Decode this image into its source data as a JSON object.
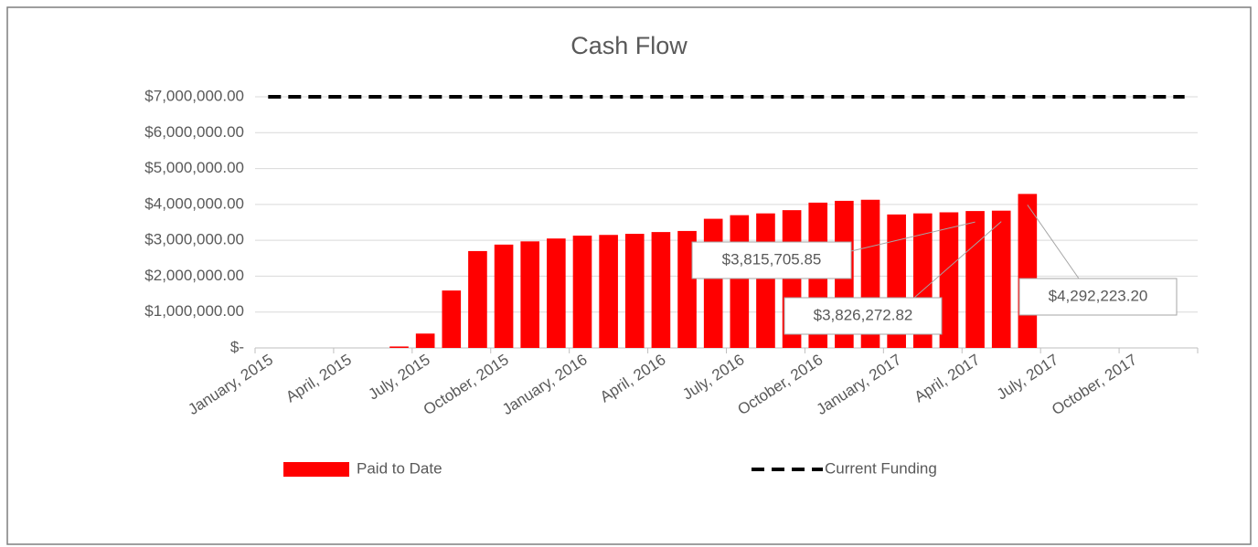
{
  "chart_data": {
    "type": "bar",
    "title": "Cash Flow",
    "categories": [
      "January, 2015",
      null,
      null,
      "April, 2015",
      null,
      null,
      "July, 2015",
      null,
      null,
      "October, 2015",
      null,
      null,
      "January, 2016",
      null,
      null,
      "April, 2016",
      null,
      null,
      "July, 2016",
      null,
      null,
      "October, 2016",
      null,
      null,
      "January, 2017",
      null,
      null,
      "April, 2017",
      null,
      null,
      "July, 2017",
      null,
      null,
      "October, 2017",
      null,
      null
    ],
    "series": [
      {
        "name": "Paid to Date",
        "type": "bar",
        "color": "#ff0000",
        "values": [
          0,
          0,
          0,
          0,
          0,
          40000,
          400000,
          1600000,
          2700000,
          2880000,
          2970000,
          3050000,
          3130000,
          3150000,
          3180000,
          3230000,
          3260000,
          3600000,
          3700000,
          3750000,
          3840000,
          4050000,
          4100000,
          4130000,
          3720000,
          3750000,
          3780000,
          3815705.85,
          3826272.82,
          4292223.2,
          null,
          null,
          null,
          null,
          null,
          null
        ],
        "value_labels": [
          null,
          null,
          null,
          null,
          null,
          null,
          null,
          null,
          null,
          null,
          null,
          null,
          null,
          null,
          null,
          null,
          null,
          null,
          null,
          null,
          null,
          null,
          null,
          null,
          null,
          null,
          null,
          "$3,815,705.85",
          "$3,826,272.82",
          "$4,292,223.20",
          null,
          null,
          null,
          null,
          null,
          null
        ]
      },
      {
        "name": "Current Funding",
        "type": "line",
        "color": "#000000",
        "dashed": true,
        "values": [
          7000000,
          7000000,
          7000000,
          7000000,
          7000000,
          7000000,
          7000000,
          7000000,
          7000000,
          7000000,
          7000000,
          7000000,
          7000000,
          7000000,
          7000000,
          7000000,
          7000000,
          7000000,
          7000000,
          7000000,
          7000000,
          7000000,
          7000000,
          7000000,
          7000000,
          7000000,
          7000000,
          7000000,
          7000000,
          7000000,
          7000000,
          7000000,
          7000000,
          7000000,
          7000000,
          7000000
        ]
      }
    ],
    "ylim": [
      0,
      7000000
    ],
    "yticks": [
      {
        "value": 0,
        "label": "$-"
      },
      {
        "value": 1000000,
        "label": "$1,000,000.00"
      },
      {
        "value": 2000000,
        "label": "$2,000,000.00"
      },
      {
        "value": 3000000,
        "label": "$3,000,000.00"
      },
      {
        "value": 4000000,
        "label": "$4,000,000.00"
      },
      {
        "value": 5000000,
        "label": "$5,000,000.00"
      },
      {
        "value": 6000000,
        "label": "$6,000,000.00"
      },
      {
        "value": 7000000,
        "label": "$7,000,000.00"
      }
    ],
    "grid": true,
    "legend": "bottom"
  }
}
